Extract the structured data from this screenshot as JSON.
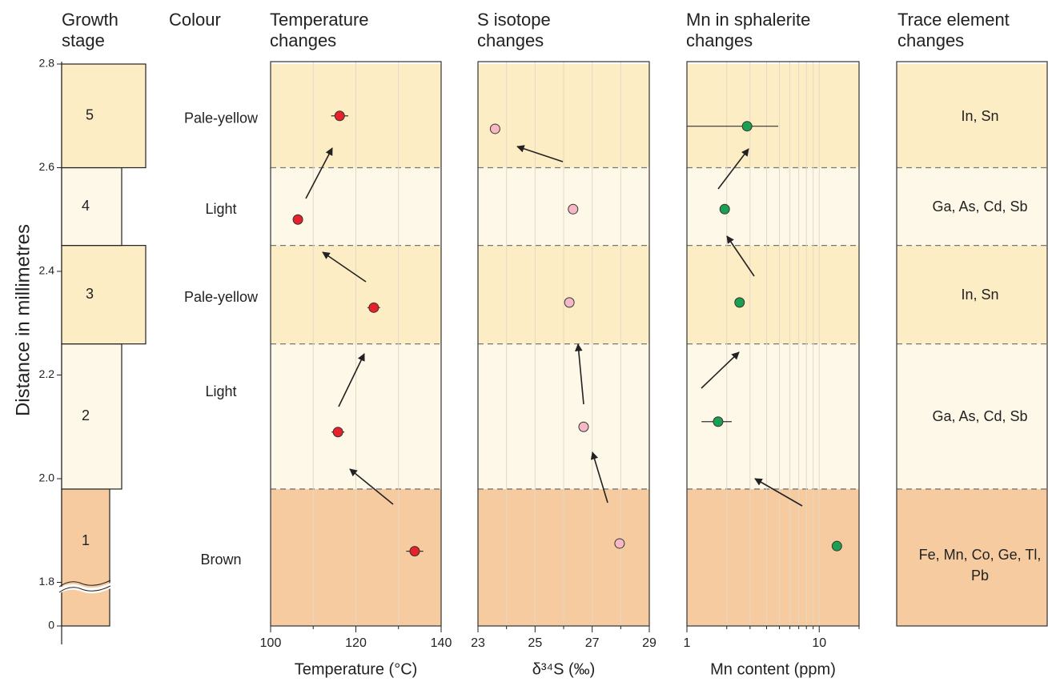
{
  "figure": {
    "growth_header": "Growth stage",
    "colour_header": "Colour",
    "trace_header": "Trace element changes",
    "y_label": "Distance  in  millimetres",
    "ylim": [
      0,
      2.8
    ],
    "yticks": [
      0,
      1.8,
      {
        "value": 2,
        "label": "2.0"
      },
      2.2,
      2.4,
      2.6,
      2.8
    ],
    "zones": [
      {
        "stage": "1",
        "colour": "Brown",
        "trace": "Fe, Mn, Co, Ge, Tl, Pb",
        "from": 0,
        "to": 1.98,
        "color": "#f7cba0"
      },
      {
        "stage": "2",
        "colour": "Light",
        "trace": "Ga, As, Cd, Sb",
        "from": 1.98,
        "to": 2.26,
        "color": "#fef8e9"
      },
      {
        "stage": "3",
        "colour": "Pale-yellow",
        "trace": "In, Sn",
        "from": 2.26,
        "to": 2.45,
        "color": "#fdedc5"
      },
      {
        "stage": "4",
        "colour": "Light",
        "trace": "Ga, As, Cd, Sb",
        "from": 2.45,
        "to": 2.6,
        "color": "#fef8e9"
      },
      {
        "stage": "5",
        "colour": "Pale-yellow",
        "trace": "In, Sn",
        "from": 2.6,
        "to": 2.8,
        "color": "#fdedc5"
      }
    ]
  },
  "chart_data": [
    {
      "type": "scatter",
      "title": "Temperature changes",
      "x_label": "Temperature (°C)",
      "xlim": [
        100,
        140
      ],
      "xticks": [
        100,
        120,
        140
      ],
      "xminor": [
        110,
        130
      ],
      "log": false,
      "grid": true,
      "series": [
        {
          "color": "#e8202a",
          "x": [
            116.2,
            106.4,
            124.2,
            115.8,
            133.8
          ],
          "y": [
            2.7,
            2.5,
            2.33,
            2.09,
            1.86
          ],
          "xerr_lower": [
            2,
            0,
            1.5,
            1.5,
            2
          ],
          "xerr_upper": [
            2,
            0,
            1.5,
            1.5,
            2
          ]
        }
      ]
    },
    {
      "type": "scatter",
      "title": "S isotope changes",
      "x_label": "δ³⁴S (‰)",
      "xlim": [
        23,
        29
      ],
      "xticks": [
        23,
        25,
        27,
        29
      ],
      "xminor": [
        24,
        26,
        28
      ],
      "log": false,
      "grid": true,
      "series": [
        {
          "color": "#f5b8c4",
          "x": [
            23.6,
            26.33,
            26.2,
            26.7,
            27.96
          ],
          "y": [
            2.675,
            2.52,
            2.34,
            2.1,
            1.875
          ],
          "xerr_lower": [
            0.1,
            0.15,
            0.1,
            0.1,
            0.1
          ],
          "xerr_upper": [
            0.1,
            0.15,
            0.1,
            0.1,
            0.1
          ]
        }
      ]
    },
    {
      "type": "scatter",
      "title": "Mn in sphalerite changes",
      "x_label": "Mn content (ppm)",
      "xlim": [
        1,
        20
      ],
      "xticks": [
        1,
        10
      ],
      "xminor": [
        2,
        3,
        4,
        5,
        6,
        7,
        8,
        9,
        20
      ],
      "log": true,
      "grid": true,
      "series": [
        {
          "color": "#1aa050",
          "x": [
            2.85,
            1.93,
            2.5,
            1.72,
            13.6
          ],
          "y": [
            2.68,
            2.52,
            2.34,
            2.11,
            1.87
          ],
          "xerr_lower": [
            1.85,
            0.15,
            0.2,
            0.43,
            0.5
          ],
          "xerr_upper": [
            2.05,
            0.15,
            0.2,
            0.46,
            0.5
          ]
        }
      ]
    }
  ]
}
